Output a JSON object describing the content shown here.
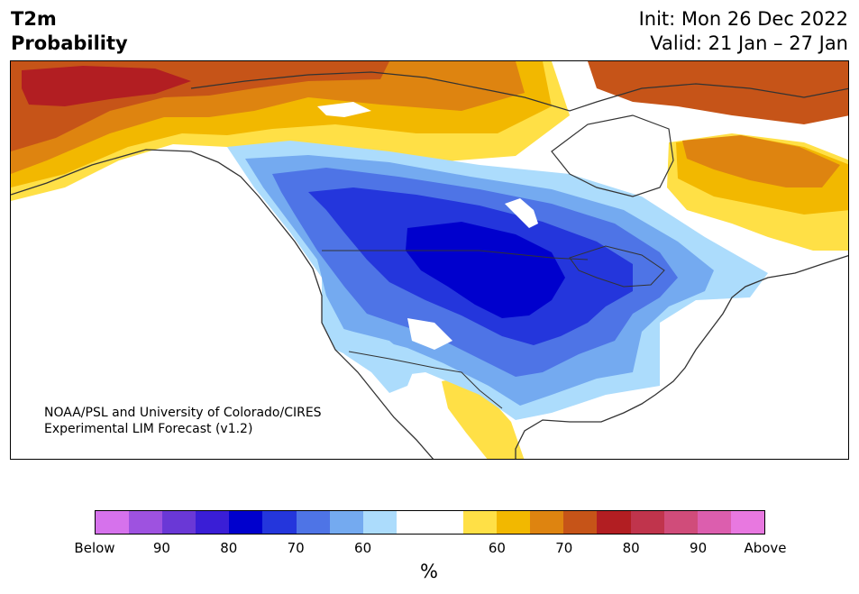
{
  "header": {
    "title_line1": "T2m",
    "title_line2": "Probability",
    "init_label": "Init: Mon 26 Dec 2022",
    "valid_label": "Valid: 21 Jan – 27 Jan"
  },
  "credit": {
    "line1": "NOAA/PSL and University of Colorado/CIRES",
    "line2": "Experimental LIM Forecast (v1.2)"
  },
  "colorbar": {
    "unit": "%",
    "colors": [
      "#d672ec",
      "#9e52e0",
      "#6a38d6",
      "#3a1ed6",
      "#0000cd",
      "#2436dc",
      "#4e74e6",
      "#74aaf0",
      "#acdcfc",
      "#ffffff",
      "#ffffff",
      "#ffe046",
      "#f2b800",
      "#de8410",
      "#c65418",
      "#b21e22",
      "#c0344c",
      "#d04c7a",
      "#dc5eae",
      "#e878e0"
    ],
    "ticks": [
      "Below",
      "90",
      "80",
      "70",
      "60",
      "60",
      "70",
      "80",
      "90",
      "Above"
    ],
    "tick_positions": [
      0,
      2,
      4,
      6,
      8,
      12,
      14,
      16,
      18,
      20
    ]
  },
  "map": {
    "colors": {
      "below_90": "#9e52e0",
      "below_80": "#0000cd",
      "below_75": "#2436dc",
      "below_70": "#4e74e6",
      "below_65": "#74aaf0",
      "below_60": "#acdcfc",
      "above_60": "#ffe046",
      "above_65": "#f2b800",
      "above_70": "#de8410",
      "above_75": "#c65418",
      "above_80": "#b21e22",
      "coast": "#333333"
    }
  }
}
